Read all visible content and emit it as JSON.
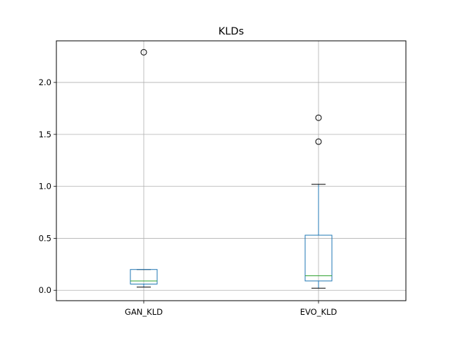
{
  "chart_data": {
    "type": "box",
    "title": "KLDs",
    "xlabel": "",
    "ylabel": "",
    "categories": [
      "GAN_KLD",
      "EVO_KLD"
    ],
    "ylim": [
      -0.1,
      2.4
    ],
    "yticks": [
      0.0,
      0.5,
      1.0,
      1.5,
      2.0
    ],
    "ytick_labels": [
      "0.0",
      "0.5",
      "1.0",
      "1.5",
      "2.0"
    ],
    "grid": true,
    "boxes": [
      {
        "name": "GAN_KLD",
        "whisker_low": 0.03,
        "q1": 0.06,
        "median": 0.09,
        "q3": 0.2,
        "whisker_high": 0.2,
        "outliers": [
          2.29
        ]
      },
      {
        "name": "EVO_KLD",
        "whisker_low": 0.02,
        "q1": 0.09,
        "median": 0.14,
        "q3": 0.53,
        "whisker_high": 1.02,
        "outliers": [
          1.43,
          1.66
        ]
      }
    ],
    "colors": {
      "box": "#1f77b4",
      "median": "#2ca02c",
      "whisker": "#1f77b4",
      "cap": "#000000",
      "grid": "#b0b0b0",
      "axes": "#000000"
    }
  }
}
